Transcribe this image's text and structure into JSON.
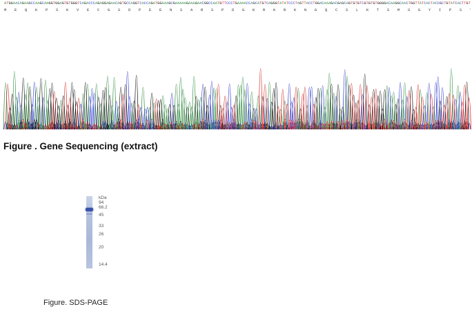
{
  "sequencing": {
    "dna_sequence": "ATGGAACAGAAGCCAAGCAAGGTGGAGTGTGGGTCAGACCCAGAGGAGAACAGTGCCAGGTCACCAGATGGAAAGCGAAAAAGAAAGAACGGCCAATGTTCCCTGAAAACCAGCATGTCAGGGTATATCCCTAGTTACCTGGACAAAGACGAGCAGTGTGTCGTGTGTGGGGACAAGGCAACTGGTTATCACTACCGCTGTATCACTTGT",
    "aa_sequence": "M E Q K P S K V E C G S D P E E N S A R S P D G K R K R K N G Q C S L K T S M S G Y I P S Y L D K D E Q C V V C G D K A T G Y H Y R C I T C",
    "caption": "Figure . Gene Sequencing (extract)",
    "trace_colors": {
      "A": "#2e8b3d",
      "C": "#2a35c8",
      "G": "#111111",
      "T": "#d62020"
    }
  },
  "sds_page": {
    "unit_label": "kDa",
    "markers": [
      "94",
      "66.2",
      "45",
      "33",
      "26",
      "20",
      "14.4"
    ],
    "caption": "Figure. SDS-PAGE",
    "band_color": "#3a52a8"
  }
}
